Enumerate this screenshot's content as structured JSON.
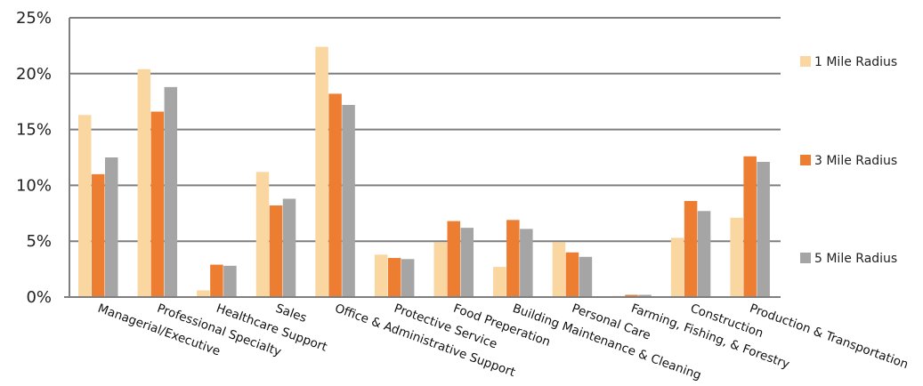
{
  "chart_data": {
    "type": "bar",
    "title": "",
    "xlabel": "",
    "ylabel": "",
    "ylim": [
      0,
      25
    ],
    "yticks": [
      0,
      5,
      10,
      15,
      20,
      25
    ],
    "ytick_format": "%",
    "grid": true,
    "legend_position": "right",
    "categories": [
      "Managerial/Executive",
      "Professional Specialty",
      "Healthcare Support",
      "Sales",
      "Office & Administrative Support",
      "Protective Service",
      "Food Preperation",
      "Building Maintenance & Cleaning",
      "Personal Care",
      "Farming, Fishing, & Forestry",
      "Construction",
      "Production & Transportation"
    ],
    "series": [
      {
        "name": "1 Mile Radius",
        "color": "#fad7a0",
        "values": [
          16.3,
          20.4,
          0.6,
          11.2,
          22.4,
          3.8,
          4.9,
          2.7,
          4.9,
          0.1,
          5.3,
          7.1
        ]
      },
      {
        "name": "3 Mile Radius",
        "color": "#ed7d31",
        "values": [
          11.0,
          16.6,
          2.9,
          8.2,
          18.2,
          3.5,
          6.8,
          6.9,
          4.0,
          0.2,
          8.6,
          12.6
        ]
      },
      {
        "name": "5 Mile Radius",
        "color": "#a5a5a5",
        "values": [
          12.5,
          18.8,
          2.8,
          8.8,
          17.2,
          3.4,
          6.2,
          6.1,
          3.6,
          0.2,
          7.7,
          12.1
        ]
      }
    ]
  }
}
